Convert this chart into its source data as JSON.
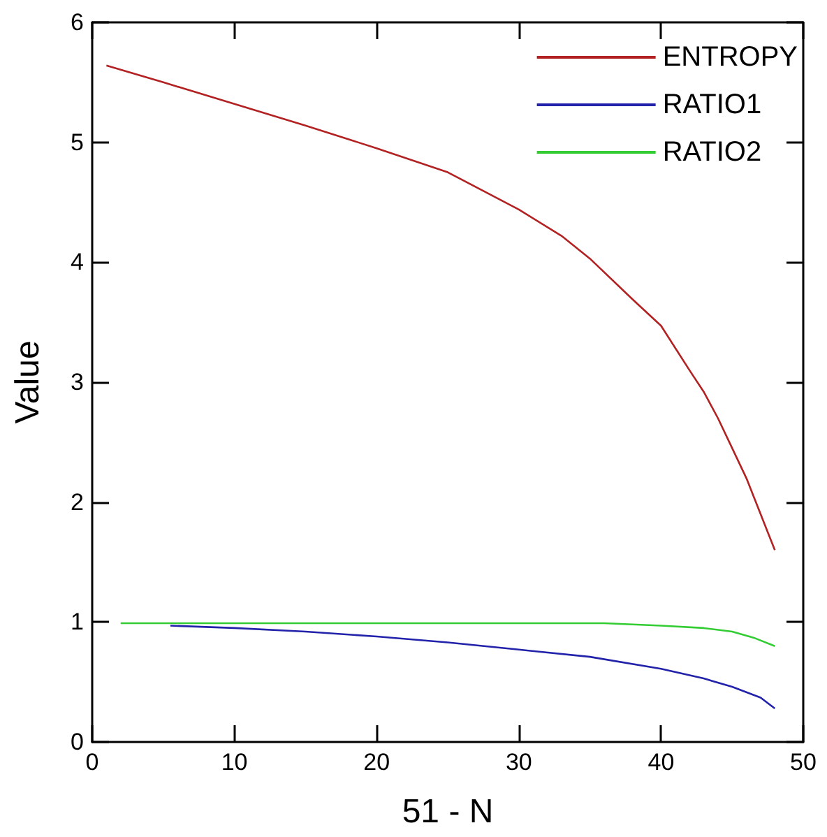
{
  "chart_data": {
    "type": "line",
    "xlabel": "51 - N",
    "ylabel": "Value",
    "xlim": [
      0,
      50
    ],
    "xticks": [
      0,
      10,
      20,
      30,
      40,
      50
    ],
    "ylim": [
      0,
      6
    ],
    "yticks": [
      0,
      1,
      2,
      3,
      4,
      5,
      6
    ],
    "grid": false,
    "legend": "top right",
    "marker": "none",
    "series": [
      {
        "name": "ENTROPY",
        "color": "#b22222",
        "x": [
          1,
          5,
          10,
          15,
          20,
          25,
          30,
          33,
          35,
          38,
          40,
          42,
          43,
          44,
          45,
          46,
          47,
          48
        ],
        "values": [
          5.64,
          5.5,
          5.32,
          5.14,
          4.95,
          4.75,
          4.44,
          4.22,
          4.03,
          3.69,
          3.47,
          3.1,
          2.92,
          2.7,
          2.45,
          2.2,
          1.9,
          1.6
        ]
      },
      {
        "name": "RATIO1",
        "color": "#2222aa",
        "x": [
          5.5,
          10,
          15,
          20,
          25,
          30,
          35,
          40,
          43,
          45,
          47,
          48
        ],
        "values": [
          0.97,
          0.95,
          0.92,
          0.88,
          0.83,
          0.77,
          0.71,
          0.61,
          0.53,
          0.46,
          0.37,
          0.28
        ]
      },
      {
        "name": "RATIO2",
        "color": "#33cc33",
        "x": [
          2,
          10,
          20,
          30,
          36,
          40,
          43,
          45,
          46.5,
          48
        ],
        "values": [
          0.99,
          0.99,
          0.99,
          0.99,
          0.99,
          0.97,
          0.95,
          0.92,
          0.87,
          0.8
        ]
      }
    ]
  }
}
